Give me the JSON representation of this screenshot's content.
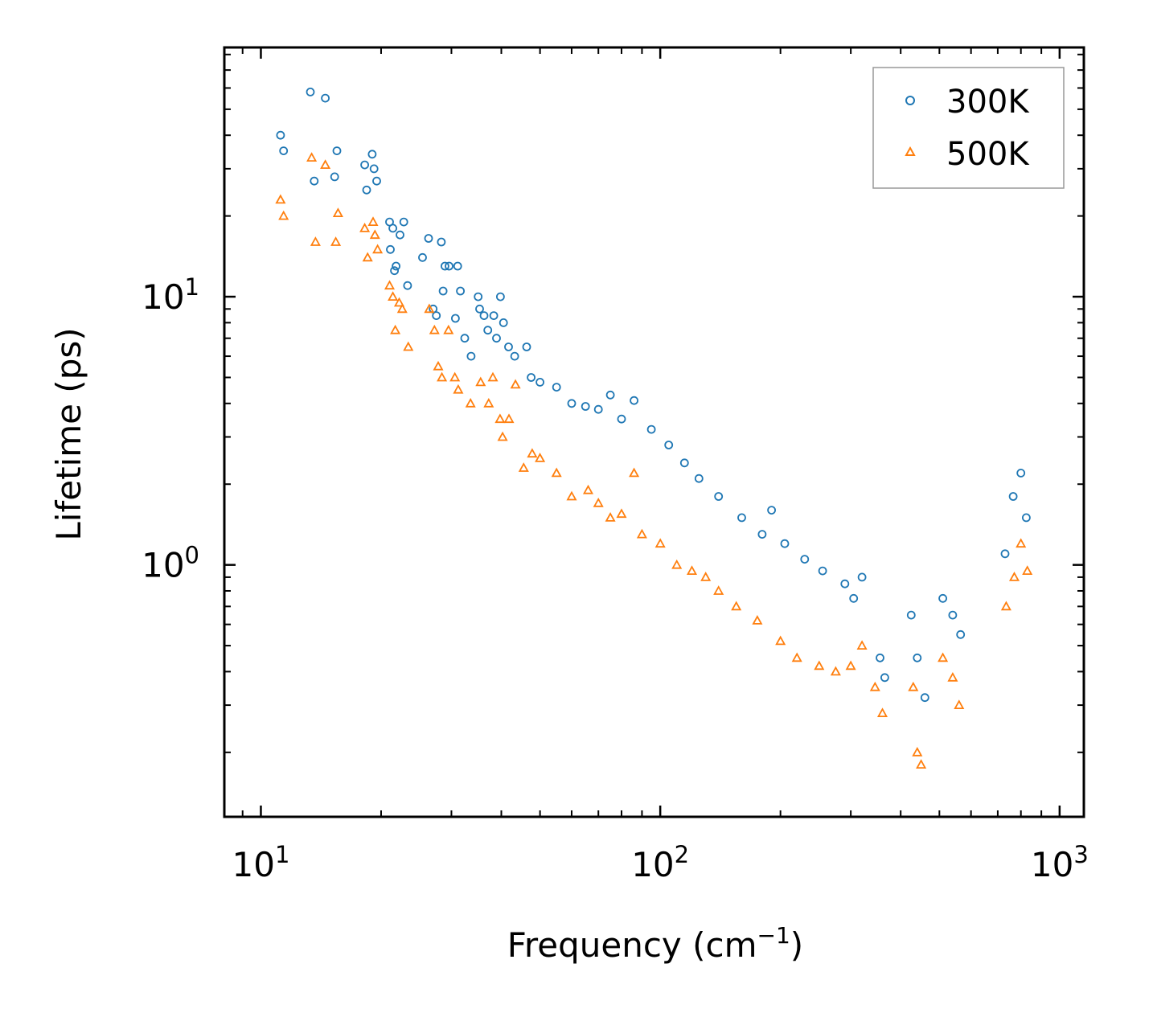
{
  "chart_data": {
    "type": "scatter",
    "xscale": "log",
    "yscale": "log",
    "xlim": [
      8.1,
      1150
    ],
    "ylim": [
      0.115,
      85
    ],
    "xlabel": {
      "base": "Frequency (cm",
      "sup": "−1",
      "tail": ")"
    },
    "ylabel": "Lifetime (ps)",
    "x_ticks": [
      {
        "value": 10,
        "base": "10",
        "exp": "1"
      },
      {
        "value": 100,
        "base": "10",
        "exp": "2"
      },
      {
        "value": 1000,
        "base": "10",
        "exp": "3"
      }
    ],
    "y_ticks": [
      {
        "value": 1,
        "base": "10",
        "exp": "0"
      },
      {
        "value": 10,
        "base": "10",
        "exp": "1"
      }
    ],
    "legend_position": "top-right",
    "series": [
      {
        "name": "300K",
        "marker": "circle",
        "color": "#1f77b4",
        "points": [
          [
            11.2,
            40
          ],
          [
            11.4,
            35
          ],
          [
            13.3,
            58
          ],
          [
            13.6,
            27
          ],
          [
            14.5,
            55
          ],
          [
            15.3,
            28
          ],
          [
            15.5,
            35
          ],
          [
            18.2,
            31
          ],
          [
            18.4,
            25
          ],
          [
            19.0,
            34
          ],
          [
            19.2,
            30
          ],
          [
            19.5,
            27
          ],
          [
            21.0,
            19
          ],
          [
            21.1,
            15
          ],
          [
            21.4,
            18
          ],
          [
            21.6,
            12.5
          ],
          [
            21.8,
            13
          ],
          [
            22.3,
            17
          ],
          [
            22.8,
            19
          ],
          [
            23.3,
            11
          ],
          [
            25.4,
            14
          ],
          [
            26.3,
            16.5
          ],
          [
            27.0,
            9
          ],
          [
            27.5,
            8.5
          ],
          [
            28.3,
            16
          ],
          [
            28.6,
            10.5
          ],
          [
            28.9,
            13
          ],
          [
            29.6,
            13
          ],
          [
            30.7,
            8.3
          ],
          [
            31.1,
            13
          ],
          [
            31.6,
            10.5
          ],
          [
            32.4,
            7
          ],
          [
            33.6,
            6
          ],
          [
            35.0,
            10
          ],
          [
            35.3,
            9
          ],
          [
            36.2,
            8.5
          ],
          [
            37.0,
            7.5
          ],
          [
            38.3,
            8.5
          ],
          [
            38.9,
            7
          ],
          [
            39.8,
            10
          ],
          [
            40.5,
            8
          ],
          [
            41.7,
            6.5
          ],
          [
            43.2,
            6
          ],
          [
            46.3,
            6.5
          ],
          [
            47.5,
            5
          ],
          [
            50,
            4.8
          ],
          [
            55,
            4.6
          ],
          [
            60,
            4
          ],
          [
            65,
            3.9
          ],
          [
            70,
            3.8
          ],
          [
            75,
            4.3
          ],
          [
            80,
            3.5
          ],
          [
            86,
            4.1
          ],
          [
            95,
            3.2
          ],
          [
            105,
            2.8
          ],
          [
            115,
            2.4
          ],
          [
            125,
            2.1
          ],
          [
            140,
            1.8
          ],
          [
            160,
            1.5
          ],
          [
            180,
            1.3
          ],
          [
            190,
            1.6
          ],
          [
            205,
            1.2
          ],
          [
            230,
            1.05
          ],
          [
            255,
            0.95
          ],
          [
            290,
            0.85
          ],
          [
            305,
            0.75
          ],
          [
            320,
            0.9
          ],
          [
            355,
            0.45
          ],
          [
            365,
            0.38
          ],
          [
            425,
            0.65
          ],
          [
            440,
            0.45
          ],
          [
            460,
            0.32
          ],
          [
            510,
            0.75
          ],
          [
            540,
            0.65
          ],
          [
            565,
            0.55
          ],
          [
            730,
            1.1
          ],
          [
            765,
            1.8
          ],
          [
            800,
            2.2
          ],
          [
            825,
            1.5
          ]
        ]
      },
      {
        "name": "500K",
        "marker": "triangle",
        "color": "#ff7f0e",
        "points": [
          [
            11.2,
            23
          ],
          [
            11.4,
            20
          ],
          [
            13.4,
            33
          ],
          [
            13.7,
            16
          ],
          [
            14.5,
            31
          ],
          [
            15.4,
            16
          ],
          [
            15.6,
            20.5
          ],
          [
            18.2,
            18
          ],
          [
            18.5,
            14
          ],
          [
            19.1,
            19
          ],
          [
            19.3,
            17
          ],
          [
            19.6,
            15
          ],
          [
            21.0,
            11
          ],
          [
            21.4,
            10
          ],
          [
            21.7,
            7.5
          ],
          [
            22.2,
            9.5
          ],
          [
            22.6,
            9
          ],
          [
            23.4,
            6.5
          ],
          [
            26.4,
            9
          ],
          [
            27.2,
            7.5
          ],
          [
            27.8,
            5.5
          ],
          [
            28.4,
            5
          ],
          [
            29.5,
            7.5
          ],
          [
            30.6,
            5
          ],
          [
            31.2,
            4.5
          ],
          [
            33.5,
            4
          ],
          [
            35.5,
            4.8
          ],
          [
            37.2,
            4
          ],
          [
            38.1,
            5
          ],
          [
            39.7,
            3.5
          ],
          [
            40.3,
            3
          ],
          [
            41.8,
            3.5
          ],
          [
            43.4,
            4.7
          ],
          [
            45.5,
            2.3
          ],
          [
            47.8,
            2.6
          ],
          [
            50,
            2.5
          ],
          [
            55,
            2.2
          ],
          [
            60,
            1.8
          ],
          [
            66,
            1.9
          ],
          [
            70,
            1.7
          ],
          [
            75,
            1.5
          ],
          [
            80,
            1.55
          ],
          [
            86,
            2.2
          ],
          [
            90,
            1.3
          ],
          [
            100,
            1.2
          ],
          [
            110,
            1
          ],
          [
            120,
            0.95
          ],
          [
            130,
            0.9
          ],
          [
            140,
            0.8
          ],
          [
            155,
            0.7
          ],
          [
            175,
            0.62
          ],
          [
            200,
            0.52
          ],
          [
            220,
            0.45
          ],
          [
            250,
            0.42
          ],
          [
            275,
            0.4
          ],
          [
            300,
            0.42
          ],
          [
            320,
            0.5
          ],
          [
            345,
            0.35
          ],
          [
            360,
            0.28
          ],
          [
            430,
            0.35
          ],
          [
            440,
            0.2
          ],
          [
            450,
            0.18
          ],
          [
            510,
            0.45
          ],
          [
            540,
            0.38
          ],
          [
            560,
            0.3
          ],
          [
            735,
            0.7
          ],
          [
            770,
            0.9
          ],
          [
            800,
            1.2
          ],
          [
            830,
            0.95
          ]
        ]
      }
    ]
  }
}
